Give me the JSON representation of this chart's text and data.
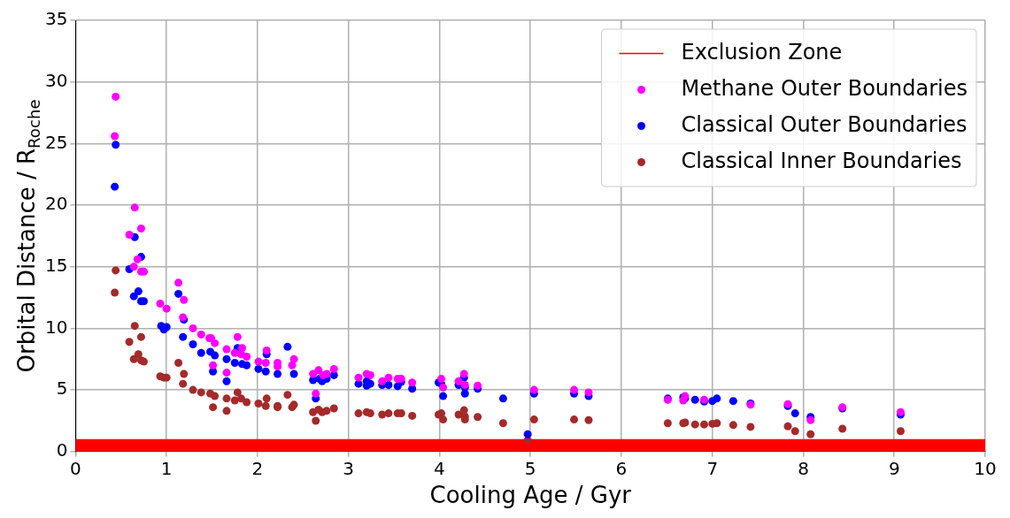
{
  "chart_data": {
    "type": "scatter",
    "xlabel": "Cooling Age / Gyr",
    "ylabel": "Orbital Distance / R$_{Roche}$",
    "xlim": [
      0,
      10
    ],
    "xticks": [
      0,
      1,
      2,
      3,
      4,
      5,
      6,
      7,
      8,
      9,
      10
    ],
    "ylim": [
      0,
      35
    ],
    "yticks": [
      0,
      5,
      10,
      15,
      20,
      25,
      30,
      35
    ],
    "grid": true,
    "legend": "top right",
    "marker": "circle",
    "bands": [
      {
        "axis": "y",
        "from": 0,
        "to": 1,
        "label": "Exclusion Zone",
        "color": "#ff0000"
      }
    ],
    "series": [
      {
        "name": "Methane Outer Boundaries",
        "color": "#ff00ff",
        "x": [
          0.44,
          0.43,
          0.65,
          0.72,
          0.59,
          0.68,
          0.64,
          0.72,
          0.75,
          1.13,
          1.19,
          0.93,
          1.0,
          1.18,
          1.29,
          1.38,
          1.47,
          1.49,
          1.53,
          1.78,
          1.66,
          1.83,
          1.75,
          1.82,
          1.88,
          1.51,
          1.66,
          2.01,
          2.1,
          2.09,
          2.22,
          2.22,
          2.4,
          2.38,
          2.61,
          2.67,
          2.72,
          2.76,
          2.84,
          2.64,
          3.11,
          3.2,
          3.24,
          3.37,
          3.44,
          3.54,
          3.58,
          3.7,
          4.02,
          4.04,
          4.21,
          4.27,
          4.28,
          4.42,
          5.04,
          5.48,
          5.64,
          6.51,
          6.68,
          6.7,
          6.91,
          7.42,
          7.83,
          8.08,
          8.43,
          9.07
        ],
        "values": [
          28.8,
          25.6,
          19.8,
          18.1,
          17.6,
          15.6,
          15.0,
          14.6,
          14.6,
          13.7,
          12.3,
          12.0,
          11.6,
          10.9,
          10.0,
          9.5,
          9.2,
          9.2,
          8.8,
          9.3,
          8.3,
          8.4,
          8.0,
          7.9,
          7.7,
          7.0,
          6.4,
          7.3,
          8.2,
          7.2,
          7.2,
          6.9,
          7.5,
          7.0,
          6.3,
          6.6,
          6.2,
          6.3,
          6.7,
          4.7,
          6.0,
          6.3,
          6.2,
          5.7,
          6.0,
          5.9,
          5.9,
          5.6,
          5.9,
          5.2,
          5.7,
          6.3,
          5.4,
          5.35,
          5.0,
          5.0,
          4.8,
          4.2,
          4.15,
          4.5,
          4.2,
          3.8,
          3.85,
          2.55,
          3.6,
          3.2
        ]
      },
      {
        "name": "Classical Outer Boundaries",
        "color": "#0000ff",
        "x": [
          0.44,
          0.43,
          0.65,
          0.72,
          0.59,
          0.69,
          0.64,
          0.72,
          0.75,
          1.13,
          1.19,
          0.94,
          1.0,
          0.97,
          1.18,
          1.29,
          1.38,
          1.48,
          1.53,
          1.78,
          1.66,
          1.75,
          1.83,
          1.88,
          1.51,
          1.66,
          2.01,
          2.1,
          2.09,
          2.22,
          2.33,
          2.4,
          2.61,
          2.68,
          2.71,
          2.76,
          2.84,
          2.64,
          3.11,
          3.2,
          3.2,
          3.24,
          3.37,
          3.44,
          3.54,
          3.58,
          3.7,
          3.99,
          4.02,
          4.04,
          4.21,
          4.27,
          4.28,
          4.28,
          4.42,
          4.7,
          4.97,
          5.04,
          5.48,
          5.64,
          6.51,
          6.68,
          6.7,
          6.81,
          6.91,
          7.0,
          7.05,
          7.23,
          7.42,
          7.83,
          7.91,
          8.08,
          8.43,
          9.07
        ],
        "values": [
          24.9,
          21.5,
          17.4,
          15.8,
          14.8,
          13.0,
          12.6,
          12.2,
          12.2,
          12.8,
          10.7,
          10.2,
          10.1,
          9.9,
          9.3,
          8.7,
          8.0,
          8.1,
          7.8,
          8.4,
          7.5,
          7.2,
          7.1,
          7.0,
          6.5,
          5.7,
          6.7,
          7.9,
          6.5,
          6.3,
          8.5,
          6.3,
          5.8,
          5.9,
          5.7,
          5.9,
          6.2,
          4.3,
          5.5,
          5.7,
          5.35,
          5.5,
          5.4,
          5.4,
          5.3,
          5.65,
          5.1,
          5.6,
          5.5,
          4.5,
          5.4,
          6.0,
          5.2,
          4.7,
          5.1,
          4.3,
          1.4,
          4.7,
          4.7,
          4.5,
          4.3,
          4.4,
          4.3,
          4.2,
          4.05,
          4.1,
          4.3,
          4.1,
          3.9,
          3.7,
          3.1,
          2.8,
          3.5,
          3.0
        ]
      },
      {
        "name": "Classical Inner Boundaries",
        "color": "#a52a2a",
        "x": [
          0.44,
          0.43,
          0.65,
          0.72,
          0.59,
          0.69,
          0.64,
          0.72,
          0.75,
          1.13,
          1.19,
          0.93,
          0.97,
          1.0,
          1.18,
          1.29,
          1.38,
          1.48,
          1.53,
          1.78,
          1.66,
          1.75,
          1.82,
          1.88,
          1.51,
          1.66,
          2.01,
          2.1,
          2.09,
          2.22,
          2.22,
          2.33,
          2.38,
          2.4,
          2.61,
          2.67,
          2.71,
          2.76,
          2.84,
          2.64,
          3.11,
          3.2,
          3.24,
          3.37,
          3.44,
          3.54,
          3.58,
          3.7,
          3.99,
          4.02,
          4.04,
          4.21,
          4.27,
          4.28,
          4.28,
          4.42,
          4.7,
          4.97,
          5.04,
          5.48,
          5.64,
          6.51,
          6.68,
          6.7,
          6.81,
          6.91,
          7.0,
          7.05,
          7.23,
          7.42,
          7.83,
          7.91,
          8.08,
          8.43,
          9.07
        ],
        "values": [
          14.7,
          12.9,
          10.2,
          9.3,
          8.9,
          7.9,
          7.5,
          7.4,
          7.3,
          7.2,
          6.3,
          6.1,
          6.0,
          6.0,
          5.5,
          5.0,
          4.8,
          4.7,
          4.5,
          4.8,
          4.3,
          4.15,
          4.3,
          4.0,
          3.6,
          3.3,
          3.9,
          4.3,
          3.7,
          3.7,
          3.6,
          4.6,
          3.6,
          3.8,
          3.2,
          3.4,
          3.2,
          3.3,
          3.5,
          2.5,
          3.1,
          3.2,
          3.1,
          3.0,
          3.1,
          3.1,
          3.1,
          2.9,
          3.0,
          3.1,
          2.6,
          3.0,
          3.35,
          2.85,
          2.6,
          2.8,
          2.3,
          0.9,
          2.6,
          2.6,
          2.55,
          2.3,
          2.3,
          2.35,
          2.2,
          2.2,
          2.25,
          2.3,
          2.15,
          2.0,
          2.05,
          1.65,
          1.4,
          1.85,
          1.65
        ]
      }
    ]
  }
}
